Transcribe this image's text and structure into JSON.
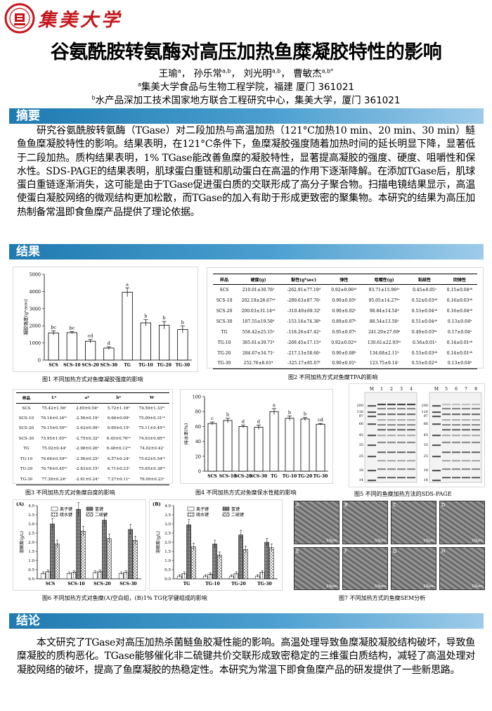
{
  "header": {
    "university_name": "集美大学",
    "title": "谷氨酰胺转氨酶对高压加热鱼糜凝胶特性的影响",
    "authors": [
      {
        "name": "王瑜",
        "sup": "a"
      },
      {
        "name": "孙乐常",
        "sup": "a,b"
      },
      {
        "name": "刘光明",
        "sup": "a,b"
      },
      {
        "name": "曹敏杰",
        "sup": "a,b*"
      }
    ],
    "affiliation_1": {
      "sup": "a",
      "text": "集美大学食品与生物工程学院，福建 厦门 361021"
    },
    "affiliation_2": {
      "sup": "b",
      "text": "水产品深加工技术国家地方联合工程研究中心，集美大学，厦门 361021"
    }
  },
  "sections": {
    "abstract_title": "摘要",
    "results_title": "结果",
    "conclusion_title": "结论"
  },
  "abstract": "研究谷氨酰胺转氨酶（TGase）对二段加热与高温加热（121°C加热10 min、20 min、30 min）鲢鱼鱼糜凝胶特性的影响。结果表明，在121°C条件下，鱼糜凝胶强度随着加热时间的延长明显下降，显著低于二段加热。质构结果表明，1% TGase能改善鱼糜的凝胶特性，显著提高凝胶的强度、硬度、咀嚼性和保水性。SDS-PAGE的结果表明，肌球蛋白重链和肌动蛋白在高温的作用下逐渐降解。在添加TGase后，肌球蛋白重链逐渐消失，这可能是由于TGase促进蛋白质的交联形成了高分子聚合物。扫描电镜结果显示，高温使蛋白凝胶网络的微观结构更加松散，而TGase的加入有助于形成更致密的聚集物。本研究的结果为高压加热制备常温即食鱼糜产品提供了理论依据。",
  "conclusion": "本文研究了TGase对高压加热杀菌鲢鱼胶凝性能的影响。高温处理导致鱼糜凝胶凝胶结构破坏，导致鱼糜凝胶的质构恶化。TGase能够催化非二硫键共价交联形成致密稳定的三维蛋白质结构，减轻了高温处理对凝胶网络的破坏，提高了鱼糜凝胶的热稳定性。本研究为常温下即食鱼糜产品的研发提供了一些新思路。",
  "captions": {
    "fig1": "图1 不同加热方式对鱼糜凝胶强度的影响",
    "fig2": "图2 不同加热方式对鱼糜TPA的影响",
    "fig3": "图3 不同加热方式对鱼糜白度的影响",
    "fig4": "图4 不同加热方式对鱼糜保水性能的影响",
    "fig5": "图5 不同的鱼糜加热方法的SDS-PAGE",
    "fig6": "图6 不同加热方式对鱼糜(A)空白组，(B)1% TG化学键组成的影响",
    "fig7": "图7 不同加热方式的鱼糜SEM分析"
  },
  "chart_data": [
    {
      "id": "fig1",
      "type": "bar",
      "categories": [
        "SCS",
        "SCS-10",
        "SCS-20",
        "SCS-30",
        "TG",
        "TG-10",
        "TG-20",
        "TG-30"
      ],
      "values": [
        1580,
        1600,
        1100,
        700,
        3950,
        2170,
        2030,
        1780
      ],
      "errors": [
        120,
        60,
        100,
        80,
        260,
        180,
        220,
        200
      ],
      "letters": [
        "bc",
        "bc",
        "cd",
        "d",
        "a",
        "b",
        "b",
        "b"
      ],
      "ylabel": "凝胶强度(g*mm)",
      "ylim": [
        0,
        5000
      ],
      "yticks": [
        0,
        1000,
        2000,
        3000,
        4000,
        5000
      ],
      "color": "#ffffff"
    },
    {
      "id": "fig4",
      "type": "bar",
      "categories": [
        "SCS",
        "SCS-10",
        "SCS-20",
        "SCS-30",
        "TG",
        "TG-10",
        "TG-20",
        "TG-30"
      ],
      "values": [
        64,
        68,
        60,
        59,
        80,
        71,
        70,
        63
      ],
      "errors": [
        2,
        3,
        2,
        3,
        4,
        3,
        2,
        1
      ],
      "letters": [
        "c",
        "b",
        "d",
        "d",
        "a",
        "b",
        "b",
        "cd"
      ],
      "ylabel": "持水率(%)",
      "ylim": [
        0,
        100
      ],
      "yticks": [
        0,
        20,
        40,
        60,
        80,
        100
      ],
      "color": "#ffffff"
    },
    {
      "id": "fig6a",
      "type": "bar",
      "panel_label": "(A)",
      "categories": [
        "SCS",
        "SCS-10",
        "SCS-20",
        "SCS-30"
      ],
      "series": [
        {
          "name": "离子键",
          "values": [
            0.3,
            0.3,
            0.35,
            0.3
          ],
          "pattern": "white"
        },
        {
          "name": "疏水键",
          "values": [
            0.4,
            0.35,
            0.4,
            0.35
          ],
          "pattern": "dots"
        },
        {
          "name": "氢键",
          "values": [
            3.0,
            3.8,
            3.2,
            2.7
          ],
          "pattern": "dense"
        },
        {
          "name": "二硫键",
          "values": [
            1.9,
            2.6,
            2.2,
            2.1
          ],
          "pattern": "checker"
        }
      ],
      "ylabel": "溶解度(g/L)",
      "ylim": [
        0,
        4.0
      ],
      "yticks": [
        0,
        0.5,
        1.0,
        1.5,
        2.0,
        2.5,
        3.0,
        3.5,
        4.0
      ]
    },
    {
      "id": "fig6b",
      "type": "bar",
      "panel_label": "(B)",
      "categories": [
        "TG",
        "TG-10",
        "TG-20",
        "TG-30"
      ],
      "series": [
        {
          "name": "离子键",
          "values": [
            0.15,
            0.15,
            0.15,
            0.15
          ],
          "pattern": "white"
        },
        {
          "name": "疏水键",
          "values": [
            0.3,
            0.25,
            0.3,
            0.35
          ],
          "pattern": "dots"
        },
        {
          "name": "氢键",
          "values": [
            2.95,
            1.9,
            2.4,
            2.0
          ],
          "pattern": "dense"
        },
        {
          "name": "二硫键",
          "values": [
            1.75,
            1.3,
            1.6,
            1.7
          ],
          "pattern": "checker"
        }
      ],
      "ylabel": "溶解度(g/L)",
      "ylim": [
        0,
        4.0
      ],
      "yticks": [
        0,
        0.5,
        1.0,
        1.5,
        2.0,
        2.5,
        3.0,
        3.5,
        4.0
      ]
    },
    {
      "id": "fig2",
      "type": "table",
      "columns": [
        "样品",
        "硬度(g)",
        "黏性(g*sec)",
        "弹性",
        "咀嚼性(g)",
        "粘结性",
        "回弹性"
      ],
      "rows": [
        [
          "SCS",
          "210.01±30.76ᵉ",
          "-262.91±77.19ᵈ",
          "0.92±0.06ᵃᵇ",
          "93.71±15.96ᵈᵉ",
          "0.45±0.05ᶜ",
          "0.15±0.04ᵃᵇ"
        ],
        [
          "SCS-10",
          "202.19±28.67ᵉᵈ",
          "-289.63±87.76ᶜ",
          "0.90±0.05ᵇ",
          "95.05±14.27ᵈᵉ",
          "0.52±0.03ᵃᵇ",
          "0.16±0.03ᵃᵇ"
        ],
        [
          "SCS-20",
          "200.03±31.14ᵉᵈ",
          "-310.49±69.32ᶠ",
          "0.90±0.02ᵇ",
          "98.84±14.54ᵈ",
          "0.53±0.04ᵃᵇ",
          "0.16±0.04ᵃᵇ"
        ],
        [
          "SCS-30",
          "187.55±19.58ᵈ",
          "-153.16±74.38ᵇ",
          "0.89±0.07ᵇ",
          "88.54±13.56ᵉ",
          "0.51±0.04ᵃᵇ",
          "0.13±0.04ᵇ"
        ],
        [
          "TG",
          "556.42±25.15ᵃ",
          "-118.26±47.42ᵃ",
          "0.95±0.07ᵃ",
          "241.29±27.69ᵃ",
          "0.49±0.03ᵇᶜ",
          "0.17±0.04ᵃ"
        ],
        [
          "TG-10",
          "305.61±39.71ᵇ",
          "-269.45±17.15ᵈ",
          "0.92±0.02ᵃᵇ",
          "130.61±22.93ᵇᶜ",
          "0.56±0.01ᵃ",
          "0.14±0.01ᵃᵇ"
        ],
        [
          "TG-20",
          "284.67±34.71ᶜ",
          "-217.13±58.66ᶜ",
          "0.90±0.08ᵇ",
          "134.68±2.11ᵇ",
          "0.53±0.03ᵃᵇ",
          "0.14±0.01ᵃᵇ"
        ],
        [
          "TG-30",
          "252.76±8.61ᵈ",
          "-325.17±85.07ᶠ",
          "0.90±0.01ᵇ",
          "123.75±9.14ᶜ",
          "0.53±0.02ᵃᵇ",
          "0.13±0.04ᵇ"
        ]
      ]
    },
    {
      "id": "fig3",
      "type": "table",
      "columns": [
        "样品",
        "L*",
        "a*",
        "b*",
        "W"
      ],
      "rows": [
        [
          "SCS",
          "75.42±1.56ᶠ",
          "2.65±0.54ᵃ",
          "5.72±1.16ᵇ",
          "74.59±1.33ᵇᶜ"
        ],
        [
          "SCS-10",
          "76.14±0.34ᵈᵉ",
          "-2.56±0.19ᵃ",
          "6.66±0.09ᵃ",
          "75.09±0.31ᵃᵇ"
        ],
        [
          "SCS-20",
          "76.15±0.50ᵈᵉ",
          "-2.62±0.09ᵃ",
          "6.60±0.15ᵃ",
          "75.11±0.45ᵃᵇ"
        ],
        [
          "SCS-30",
          "75.95±1.05ᵈᵉ",
          "-2.75±0.32ᵃ",
          "6.45±0.76ᵃᵇ",
          "74.93±0.85ᵃᵇ"
        ],
        [
          "TG",
          "75.02±0.44ᶠ",
          "-2.98±0.26ᵃ",
          "6.48±0.12ᵃᵇ",
          "74.02±0.42ᶜ"
        ],
        [
          "TG-10",
          "76.66±0.59ᵃᵇ",
          "-2.56±0.25ᵃ",
          "6.57±0.24ᵃ",
          "75.62±0.54ᵃᵇ"
        ],
        [
          "TG-20",
          "76.76±0.45ᵃᵇ",
          "-2.83±0.15ᵃ",
          "6.71±0.23ᵃ",
          "75.65±0.38ᵃᵇ"
        ],
        [
          "TG-30",
          "77.38±0.24ᵃ",
          "-2.61±0.24ᵃ",
          "7.27±0.11ᵃ",
          "76.09±0.23ᵃ"
        ]
      ]
    }
  ],
  "sds_page": {
    "left_lanes": [
      "M",
      "1",
      "2",
      "3",
      "4"
    ],
    "right_lanes": [
      "M",
      "5",
      "6",
      "7",
      "8"
    ],
    "markers": [
      "200",
      "116",
      "97",
      "66",
      "45",
      "35",
      "25",
      "18",
      "14"
    ]
  },
  "sem": {
    "labels": [
      "A",
      "B",
      "C",
      "D",
      "E",
      "F",
      "G",
      "H"
    ],
    "scale": "10μm"
  }
}
